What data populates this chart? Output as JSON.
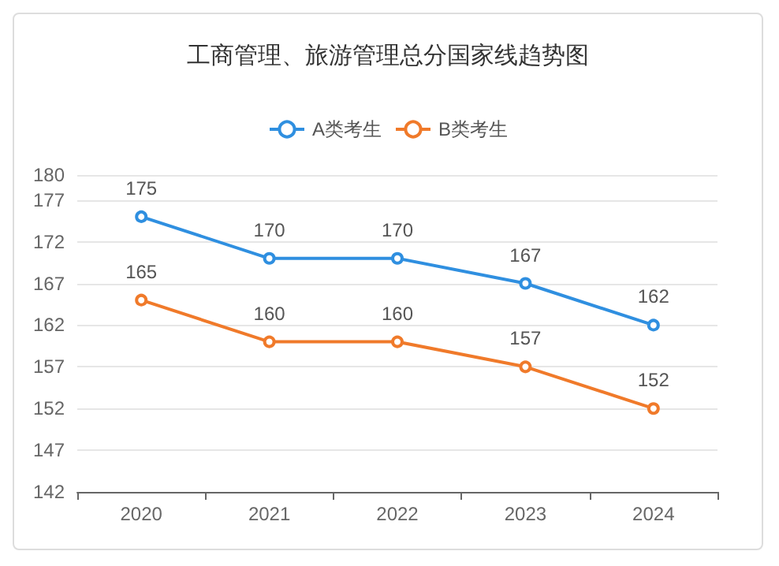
{
  "chart_data": {
    "type": "line",
    "title": "工商管理、旅游管理总分国家线趋势图",
    "categories": [
      "2020",
      "2021",
      "2022",
      "2023",
      "2024"
    ],
    "series": [
      {
        "name": "A类考生",
        "color": "#2f8fe0",
        "values": [
          175,
          170,
          170,
          167,
          162
        ]
      },
      {
        "name": "B类考生",
        "color": "#f07a2a",
        "values": [
          165,
          160,
          160,
          157,
          152
        ]
      }
    ],
    "ylim": [
      142,
      180
    ],
    "yticks": [
      142,
      147,
      152,
      157,
      162,
      167,
      172,
      177,
      180
    ],
    "grid": "y",
    "legend": "top",
    "marker": "circle",
    "line_style": "solid",
    "data_labels": true
  }
}
